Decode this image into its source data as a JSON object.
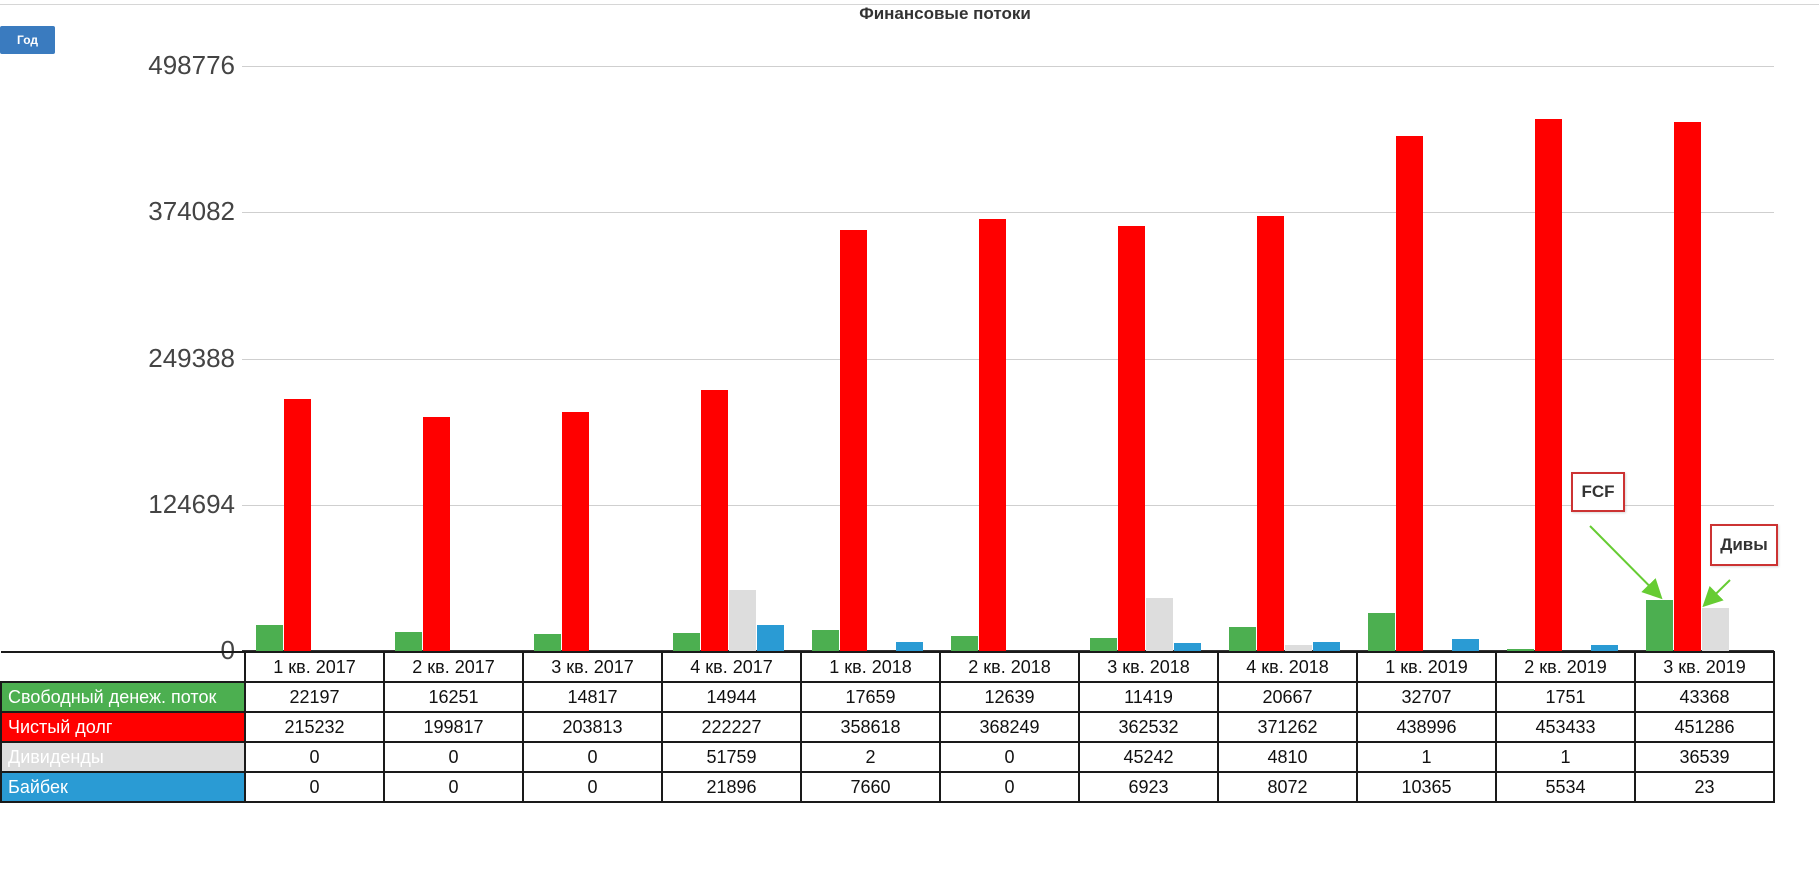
{
  "button": {
    "label": "Год"
  },
  "chart_data": {
    "type": "bar",
    "title": "Финансовые потоки",
    "categories": [
      "1 кв. 2017",
      "2 кв. 2017",
      "3 кв. 2017",
      "4 кв. 2017",
      "1 кв. 2018",
      "2 кв. 2018",
      "3 кв. 2018",
      "4 кв. 2018",
      "1 кв. 2019",
      "2 кв. 2019",
      "3 кв. 2019"
    ],
    "y_ticks": [
      "0",
      "124694",
      "249388",
      "374082",
      "498776"
    ],
    "ylim": [
      0,
      498776
    ],
    "grid": true,
    "series": [
      {
        "name": "Свободный денеж. поток",
        "color": "#4caf50",
        "values": [
          22197,
          16251,
          14817,
          14944,
          17659,
          12639,
          11419,
          20667,
          32707,
          1751,
          43368
        ]
      },
      {
        "name": "Чистый долг",
        "color": "#ff0000",
        "values": [
          215232,
          199817,
          203813,
          222227,
          358618,
          368249,
          362532,
          371262,
          438996,
          453433,
          451286
        ]
      },
      {
        "name": "Дивиденды",
        "color": "#dddddd",
        "values": [
          0,
          0,
          0,
          51759,
          2,
          0,
          45242,
          4810,
          1,
          1,
          36539
        ]
      },
      {
        "name": "Байбек",
        "color": "#2a9bd4",
        "values": [
          0,
          0,
          0,
          21896,
          7660,
          0,
          6923,
          8072,
          10365,
          5534,
          23
        ]
      }
    ],
    "annotations": [
      {
        "label": "FCF",
        "series": 0,
        "category": 10
      },
      {
        "label": "Дивы",
        "series": 2,
        "category": 10
      }
    ],
    "annotation_color": "#66cc33"
  }
}
